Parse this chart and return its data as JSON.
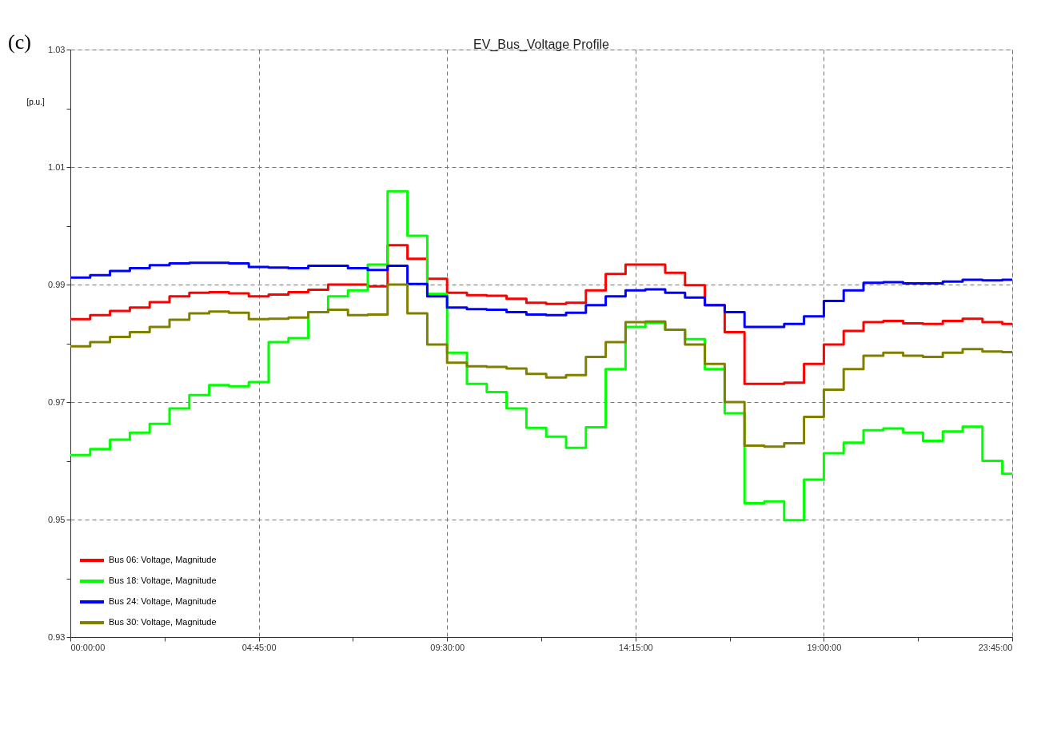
{
  "chart_data": {
    "type": "step",
    "title": "EV_Bus_Voltage Profile",
    "ylabel": "[p.u.]",
    "annotations": [
      "(c)"
    ],
    "x": [
      0,
      0.5,
      1,
      1.5,
      2,
      2.5,
      3,
      3.5,
      4,
      4.5,
      5,
      5.5,
      6,
      6.5,
      7,
      7.5,
      8,
      8.5,
      9,
      9.5,
      10,
      10.5,
      11,
      11.5,
      12,
      12.5,
      13,
      13.5,
      14,
      14.5,
      15,
      15.5,
      16,
      16.5,
      17,
      17.5,
      18,
      18.5,
      19,
      19.5,
      20,
      20.5,
      21,
      21.5,
      22,
      22.5,
      23,
      23.5,
      23.75
    ],
    "series": [
      {
        "name": "Bus 06: Voltage, Magnitude",
        "color": "#ff0000",
        "values": [
          0.9841,
          0.9848,
          0.9855,
          0.9861,
          0.987,
          0.988,
          0.9886,
          0.9887,
          0.9885,
          0.988,
          0.9883,
          0.9887,
          0.9891,
          0.99,
          0.99,
          0.9897,
          0.9967,
          0.9944,
          0.991,
          0.9886,
          0.9882,
          0.9881,
          0.9876,
          0.9869,
          0.9867,
          0.9869,
          0.989,
          0.9918,
          0.9934,
          0.9934,
          0.992,
          0.9899,
          0.9865,
          0.9819,
          0.9731,
          0.9731,
          0.9733,
          0.9765,
          0.9798,
          0.9821,
          0.9836,
          0.9838,
          0.9834,
          0.9833,
          0.9838,
          0.9842,
          0.9836,
          0.9833,
          0.9833
        ]
      },
      {
        "name": "Bus 18: Voltage, Magnitude",
        "color": "#00ff00",
        "values": [
          0.961,
          0.962,
          0.9636,
          0.9648,
          0.9663,
          0.9689,
          0.9712,
          0.9729,
          0.9727,
          0.9734,
          0.9802,
          0.9809,
          0.9853,
          0.988,
          0.989,
          0.9934,
          1.0059,
          0.9983,
          0.9884,
          0.9784,
          0.9731,
          0.9717,
          0.9689,
          0.9656,
          0.9641,
          0.9622,
          0.9657,
          0.9756,
          0.9828,
          0.9835,
          0.9823,
          0.9807,
          0.9756,
          0.9681,
          0.9528,
          0.9531,
          0.9499,
          0.9568,
          0.9613,
          0.9631,
          0.9652,
          0.9655,
          0.9648,
          0.9634,
          0.965,
          0.9658,
          0.96,
          0.9578,
          0.9578
        ]
      },
      {
        "name": "Bus 24: Voltage, Magnitude",
        "color": "#0000ff",
        "values": [
          0.9912,
          0.9916,
          0.9923,
          0.9928,
          0.9933,
          0.9936,
          0.9937,
          0.9937,
          0.9936,
          0.993,
          0.9929,
          0.9928,
          0.9932,
          0.9932,
          0.9928,
          0.9925,
          0.9932,
          0.9901,
          0.988,
          0.9861,
          0.9858,
          0.9857,
          0.9853,
          0.9849,
          0.9848,
          0.9852,
          0.9865,
          0.988,
          0.989,
          0.9892,
          0.9886,
          0.9878,
          0.9865,
          0.9853,
          0.9828,
          0.9828,
          0.9833,
          0.9846,
          0.9872,
          0.989,
          0.9903,
          0.9904,
          0.9902,
          0.9902,
          0.9905,
          0.9908,
          0.9907,
          0.9908,
          0.9908
        ]
      },
      {
        "name": "Bus 30: Voltage, Magnitude",
        "color": "#808000",
        "values": [
          0.9795,
          0.9802,
          0.9811,
          0.9819,
          0.9828,
          0.984,
          0.9851,
          0.9854,
          0.9852,
          0.9841,
          0.9842,
          0.9844,
          0.9853,
          0.9857,
          0.9848,
          0.9849,
          0.99,
          0.9851,
          0.9798,
          0.9767,
          0.9761,
          0.976,
          0.9757,
          0.9748,
          0.9742,
          0.9746,
          0.9777,
          0.9802,
          0.9836,
          0.9837,
          0.9823,
          0.9798,
          0.9765,
          0.97,
          0.9626,
          0.9624,
          0.963,
          0.9675,
          0.9721,
          0.9756,
          0.9779,
          0.9784,
          0.9779,
          0.9777,
          0.9784,
          0.979,
          0.9786,
          0.9785,
          0.9785
        ]
      }
    ],
    "xlim": [
      0,
      23.75
    ],
    "xticks": [
      {
        "value": 0,
        "label": "00:00:00"
      },
      {
        "value": 2.375,
        "label": null
      },
      {
        "value": 4.75,
        "label": "04:45:00"
      },
      {
        "value": 7.125,
        "label": null
      },
      {
        "value": 9.5,
        "label": "09:30:00"
      },
      {
        "value": 11.875,
        "label": null
      },
      {
        "value": 14.25,
        "label": "14:15:00"
      },
      {
        "value": 16.625,
        "label": null
      },
      {
        "value": 19,
        "label": "19:00:00"
      },
      {
        "value": 21.375,
        "label": null
      },
      {
        "value": 23.75,
        "label": "23:45:00"
      }
    ],
    "ylim": [
      0.93,
      1.03
    ],
    "yticks": [
      0.93,
      {
        "value": 0.94,
        "label": null
      },
      0.95,
      {
        "value": 0.96,
        "label": null
      },
      0.97,
      {
        "value": 0.98,
        "label": null
      },
      0.99,
      {
        "value": 1.0,
        "label": null
      },
      1.01,
      {
        "value": 1.02,
        "label": null
      },
      1.03
    ],
    "grid": true,
    "legend": "bottom left",
    "marker": "none",
    "line_style": "solid"
  }
}
